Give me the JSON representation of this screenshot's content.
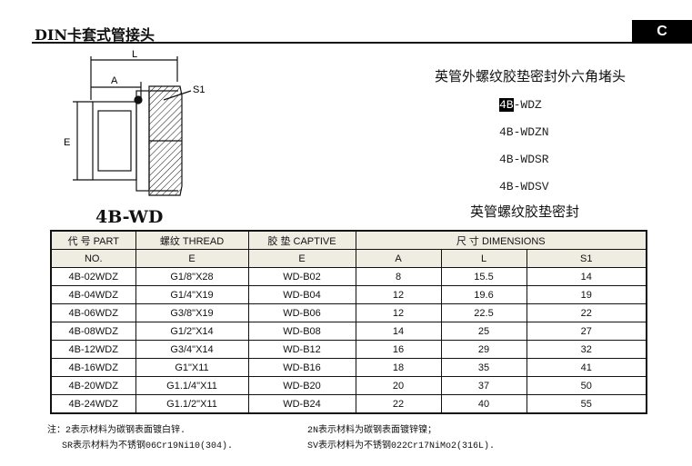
{
  "header": {
    "title": "DIN卡套式管接头",
    "section": "C"
  },
  "product": {
    "description": "英管外螺纹胶垫密封外六角堵头",
    "models": [
      "4B-WDZ",
      "4B-WDZN",
      "4B-WDSR",
      "4B-WDSV"
    ],
    "models_first_highlight": "4B",
    "models_first_rest": "-WDZ",
    "seal_note": "英管螺纹胶垫密封",
    "drawing_label": "4B-WD",
    "drawing_dims": [
      "L",
      "A",
      "S1",
      "E"
    ]
  },
  "table": {
    "head": {
      "part": "代 号 PART",
      "part2": "NO.",
      "thread": "螺纹 THREAD",
      "captive": "胶  垫 CAPTIVE",
      "dims": "尺 寸    DIMENSIONS",
      "e1": "E",
      "e2": "E",
      "a": "A",
      "l": "L",
      "s1": "S1"
    },
    "rows": [
      [
        "4B-02WDZ",
        "G1/8\"X28",
        "WD-B02",
        "8",
        "15.5",
        "14"
      ],
      [
        "4B-04WDZ",
        "G1/4\"X19",
        "WD-B04",
        "12",
        "19.6",
        "19"
      ],
      [
        "4B-06WDZ",
        "G3/8\"X19",
        "WD-B06",
        "12",
        "22.5",
        "22"
      ],
      [
        "4B-08WDZ",
        "G1/2\"X14",
        "WD-B08",
        "14",
        "25",
        "27"
      ],
      [
        "4B-12WDZ",
        "G3/4\"X14",
        "WD-B12",
        "16",
        "29",
        "32"
      ],
      [
        "4B-16WDZ",
        "G1\"X11",
        "WD-B16",
        "18",
        "35",
        "41"
      ],
      [
        "4B-20WDZ",
        "G1.1/4\"X11",
        "WD-B20",
        "20",
        "37",
        "50"
      ],
      [
        "4B-24WDZ",
        "G1.1/2\"X11",
        "WD-B24",
        "22",
        "40",
        "55"
      ]
    ]
  },
  "notes": [
    "注：2表示材料为碳钢表面镀白锌.",
    "2N表示材料为碳钢表面镀锌镍；",
    "SR表示材料为不锈钢06Cr19Ni10(304).",
    "SV表示材料为不锈钢022Cr17NiMo2(316L)."
  ]
}
